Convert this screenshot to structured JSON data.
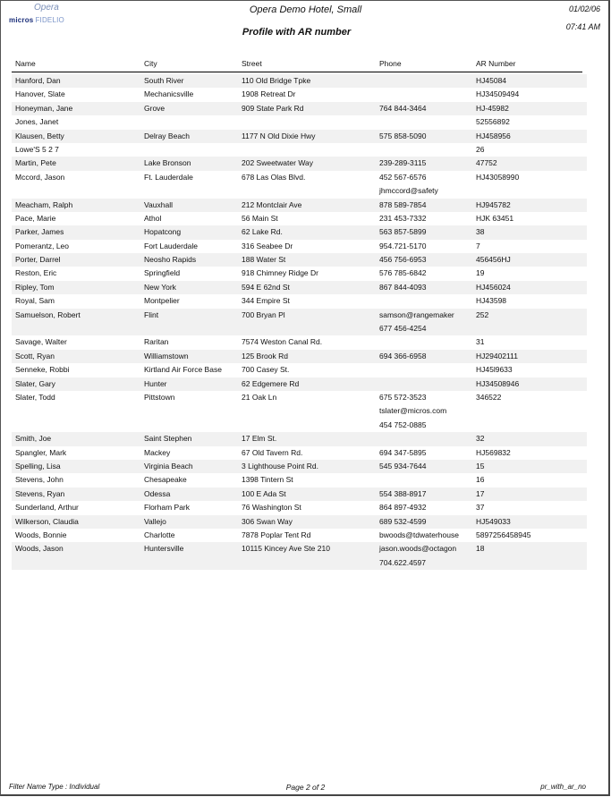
{
  "logo": {
    "opera": "Opera",
    "micros": "micros",
    "fidelio": "FIDELIO"
  },
  "header": {
    "hotel": "Opera Demo Hotel, Small",
    "title": "Profile with AR number",
    "date": "01/02/06",
    "time": "07:41 AM"
  },
  "columns": [
    "Name",
    "City",
    "Street",
    "Phone",
    "AR Number"
  ],
  "rows": [
    {
      "name": "Hanford, Dan",
      "city": "South River",
      "street": "110 Old Bridge Tpke",
      "phone": [],
      "ar": "HJ45084"
    },
    {
      "name": "Hanover, Slate",
      "city": "Mechanicsville",
      "street": "1908 Retreat Dr",
      "phone": [],
      "ar": "HJ34509494"
    },
    {
      "name": "Honeyman, Jane",
      "city": "Grove",
      "street": "909 State Park Rd",
      "phone": [
        "764 844-3464"
      ],
      "ar": "HJ-45982"
    },
    {
      "name": "Jones, Janet",
      "city": "",
      "street": "",
      "phone": [],
      "ar": "52556892"
    },
    {
      "name": "Klausen, Betty",
      "city": "Delray Beach",
      "street": "1177 N Old Dixie Hwy",
      "phone": [
        "575 858-5090"
      ],
      "ar": "HJ458956"
    },
    {
      "name": "Lowe'S 5 2 7",
      "city": "",
      "street": "",
      "phone": [],
      "ar": "26"
    },
    {
      "name": "Martin, Pete",
      "city": "Lake Bronson",
      "street": "202 Sweetwater Way",
      "phone": [
        "239-289-3115"
      ],
      "ar": "47752"
    },
    {
      "name": "Mccord, Jason",
      "city": "Ft. Lauderdale",
      "street": "678 Las Olas Blvd.",
      "phone": [
        "452 567-6576",
        "jhmccord@safety"
      ],
      "ar": "HJ43058990"
    },
    {
      "name": "Meacham, Ralph",
      "city": "Vauxhall",
      "street": "212 Montclair Ave",
      "phone": [
        "878 589-7854"
      ],
      "ar": "HJ945782"
    },
    {
      "name": "Pace, Marie",
      "city": "Athol",
      "street": "56 Main St",
      "phone": [
        "231 453-7332"
      ],
      "ar": "HJK 63451"
    },
    {
      "name": "Parker, James",
      "city": "Hopatcong",
      "street": "62 Lake Rd.",
      "phone": [
        "563 857-5899"
      ],
      "ar": "38"
    },
    {
      "name": "Pomerantz, Leo",
      "city": "Fort Lauderdale",
      "street": "316 Seabee Dr",
      "phone": [
        "954.721-5170"
      ],
      "ar": "7"
    },
    {
      "name": "Porter, Darrel",
      "city": "Neosho Rapids",
      "street": "188 Water St",
      "phone": [
        "456 756-6953"
      ],
      "ar": "456456HJ"
    },
    {
      "name": "Reston, Eric",
      "city": "Springfield",
      "street": "918 Chimney Ridge Dr",
      "phone": [
        "576 785-6842"
      ],
      "ar": "19"
    },
    {
      "name": "Ripley, Tom",
      "city": "New York",
      "street": "594 E 62nd St",
      "phone": [
        "867 844-4093"
      ],
      "ar": "HJ456024"
    },
    {
      "name": "Royal, Sam",
      "city": "Montpelier",
      "street": "344 Empire St",
      "phone": [],
      "ar": "HJ43598"
    },
    {
      "name": "Samuelson, Robert",
      "city": "Flint",
      "street": "700 Bryan Pl",
      "phone": [
        "samson@rangemaker",
        "677 456-4254"
      ],
      "ar": "252"
    },
    {
      "name": "Savage, Walter",
      "city": "Raritan",
      "street": "7574 Weston Canal Rd.",
      "phone": [],
      "ar": "31"
    },
    {
      "name": "Scott, Ryan",
      "city": "Williamstown",
      "street": "125 Brook Rd",
      "phone": [
        "694 366-6958"
      ],
      "ar": "HJ29402111"
    },
    {
      "name": "Senneke, Robbi",
      "city": "Kirtland Air Force Base",
      "street": "700 Casey St.",
      "phone": [],
      "ar": "HJ45l9633"
    },
    {
      "name": "Slater, Gary",
      "city": "Hunter",
      "street": "62 Edgemere Rd",
      "phone": [],
      "ar": "HJ34508946"
    },
    {
      "name": "Slater, Todd",
      "city": "Pittstown",
      "street": "21 Oak Ln",
      "phone": [
        "675 572-3523",
        "tslater@micros.com",
        "454 752-0885"
      ],
      "ar": "346522"
    },
    {
      "name": "Smith, Joe",
      "city": "Saint Stephen",
      "street": "17 Elm St.",
      "phone": [],
      "ar": "32"
    },
    {
      "name": "Spangler, Mark",
      "city": "Mackey",
      "street": "67 Old Tavern Rd.",
      "phone": [
        "694 347-5895"
      ],
      "ar": "HJ569832"
    },
    {
      "name": "Spelling, Lisa",
      "city": "Virginia Beach",
      "street": "3 Lighthouse Point Rd.",
      "phone": [
        "545 934-7644"
      ],
      "ar": "15"
    },
    {
      "name": "Stevens, John",
      "city": "Chesapeake",
      "street": "1398 Tintern St",
      "phone": [],
      "ar": "16"
    },
    {
      "name": "Stevens, Ryan",
      "city": "Odessa",
      "street": "100 E Ada St",
      "phone": [
        "554 388-8917"
      ],
      "ar": "17"
    },
    {
      "name": "Sunderland, Arthur",
      "city": "Florham Park",
      "street": "76 Washington St",
      "phone": [
        "864 897-4932"
      ],
      "ar": "37"
    },
    {
      "name": "Wilkerson, Claudia",
      "city": "Vallejo",
      "street": "306 Swan Way",
      "phone": [
        "689 532-4599"
      ],
      "ar": "HJ549033"
    },
    {
      "name": "Woods, Bonnie",
      "city": "Charlotte",
      "street": "7878 Poplar Tent Rd",
      "phone": [
        "bwoods@tdwaterhouse"
      ],
      "ar": "5897256458945"
    },
    {
      "name": "Woods, Jason",
      "city": "Huntersville",
      "street": "10115 Kincey Ave Ste 210",
      "phone": [
        "jason.woods@octagon",
        "704.622.4597"
      ],
      "ar": "18"
    }
  ],
  "footer": {
    "filter": "Filter   Name Type : Individual",
    "page": "Page 2 of 2",
    "report_id": "pr_with_ar_no"
  }
}
